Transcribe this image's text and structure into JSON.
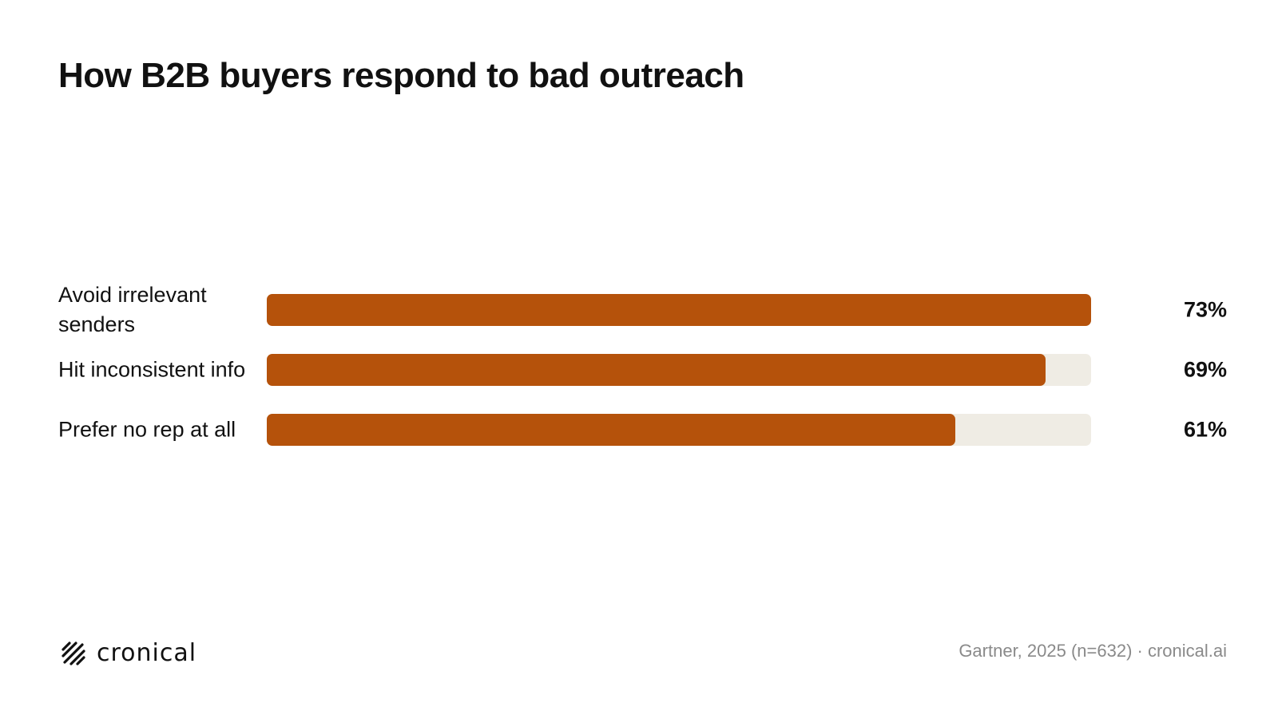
{
  "title": "How B2B buyers respond to bad outreach",
  "chart_data": {
    "type": "bar",
    "orientation": "horizontal",
    "categories": [
      "Avoid irrelevant senders",
      "Hit inconsistent info",
      "Prefer no rep at all"
    ],
    "values": [
      73,
      69,
      61
    ],
    "value_labels": [
      "73%",
      "69%",
      "61%"
    ],
    "xlim": [
      0,
      73
    ],
    "grid": false,
    "bar_color": "#b5520b",
    "track_color": "#efece4"
  },
  "footer": {
    "logo_text": "cronical",
    "logo_icon": "diagonal-stripes-icon",
    "source": "Gartner, 2025 (n=632) · cronical.ai"
  }
}
